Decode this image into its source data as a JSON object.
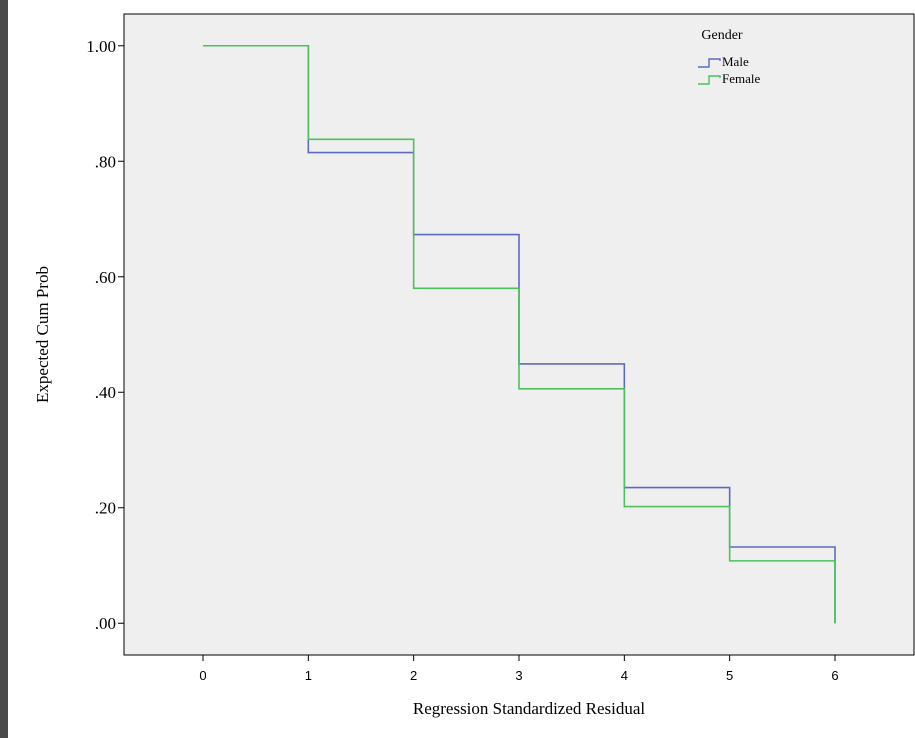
{
  "chart_data": {
    "type": "line",
    "step": true,
    "xlabel": "Regression Standardized Residual",
    "ylabel": "Expected Cum Prob",
    "xlim": [
      -0.75,
      6.75
    ],
    "ylim": [
      -0.055,
      1.055
    ],
    "x_ticks": [
      0,
      1,
      2,
      3,
      4,
      5,
      6
    ],
    "x_tick_labels": [
      "0",
      "1",
      "2",
      "3",
      "4",
      "5",
      "6"
    ],
    "y_ticks": [
      0,
      0.2,
      0.4,
      0.6,
      0.8,
      1.0
    ],
    "y_tick_labels": [
      ".00",
      ".20",
      ".40",
      ".60",
      ".80",
      "1.00"
    ],
    "grid": false,
    "background": "#efefef",
    "legend": {
      "title": "Gender",
      "placement": "top-right"
    },
    "series": [
      {
        "name": "Male",
        "color": "#5b6cc0",
        "x": [
          0,
          1,
          2,
          3,
          4,
          5,
          6
        ],
        "y": [
          1.0,
          0.815,
          0.673,
          0.449,
          0.235,
          0.132,
          0.0
        ]
      },
      {
        "name": "Female",
        "color": "#4cc25a",
        "x": [
          0,
          1,
          2,
          3,
          4,
          5,
          6
        ],
        "y": [
          1.0,
          0.838,
          0.58,
          0.406,
          0.202,
          0.108,
          0.0
        ]
      }
    ]
  }
}
